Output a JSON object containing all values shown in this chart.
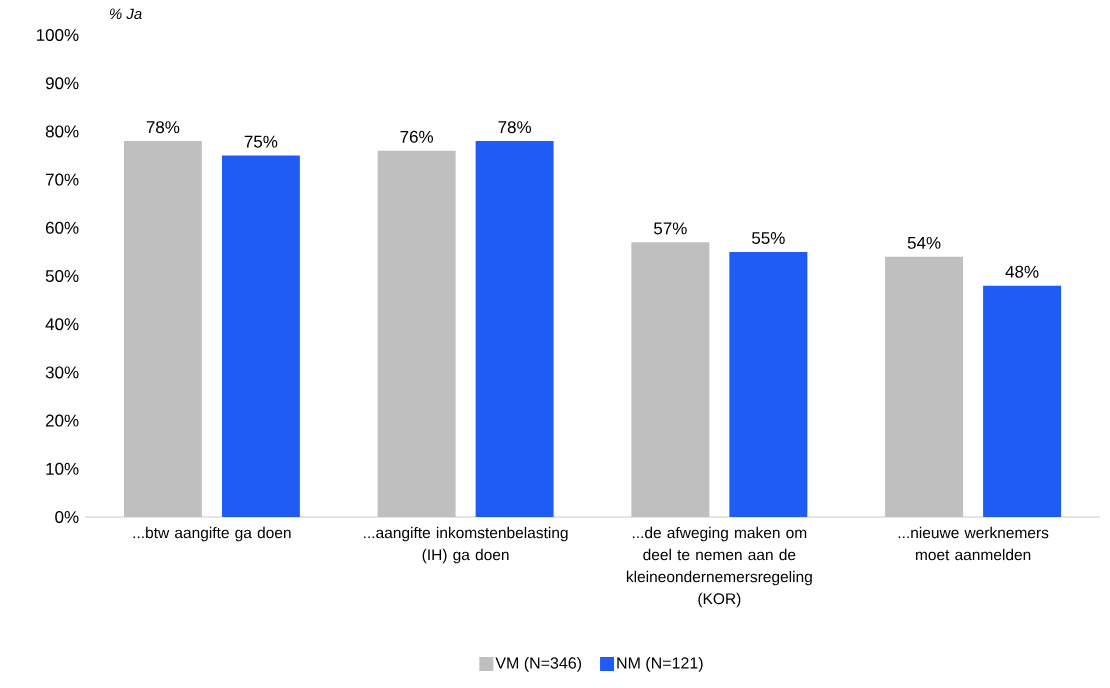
{
  "chart_data": {
    "type": "bar",
    "ylabel": "% Ja",
    "categories": [
      "...btw aangifte ga doen",
      "...aangifte inkomstenbelasting (IH) ga doen",
      "...de afweging maken om deel te nemen aan de kleineondernemersregeling (KOR)",
      "...nieuwe werknemers moet aanmelden"
    ],
    "series": [
      {
        "name": "VM (N=346)",
        "color": "#bfbfbf",
        "values": [
          78,
          76,
          57,
          54
        ],
        "value_labels": [
          "78%",
          "76%",
          "57%",
          "54%"
        ]
      },
      {
        "name": "NM (N=121)",
        "color": "#1f5cf5",
        "values": [
          75,
          78,
          55,
          48
        ],
        "value_labels": [
          "75%",
          "78%",
          "55%",
          "48%"
        ]
      }
    ],
    "ylim": [
      0,
      100
    ],
    "yticks": [
      {
        "value": 0,
        "label": "0%"
      },
      {
        "value": 10,
        "label": "10%"
      },
      {
        "value": 20,
        "label": "20%"
      },
      {
        "value": 30,
        "label": "30%"
      },
      {
        "value": 40,
        "label": "40%"
      },
      {
        "value": 50,
        "label": "50%"
      },
      {
        "value": 60,
        "label": "60%"
      },
      {
        "value": 70,
        "label": "70%"
      },
      {
        "value": 80,
        "label": "80%"
      },
      {
        "value": 90,
        "label": "90%"
      },
      {
        "value": 100,
        "label": "100%"
      }
    ],
    "grid": false,
    "legend": "bottom"
  }
}
